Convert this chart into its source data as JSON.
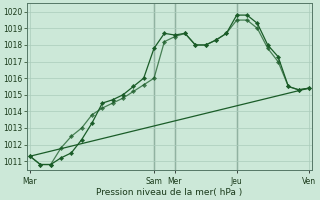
{
  "xlabel": "Pression niveau de la mer( hPa )",
  "ylim": [
    1010.5,
    1020.5
  ],
  "yticks": [
    1011,
    1012,
    1013,
    1014,
    1015,
    1016,
    1017,
    1018,
    1019,
    1020
  ],
  "day_labels": [
    "Mar",
    "",
    "Sam",
    "Mer",
    "",
    "Jeu",
    "",
    "Ven"
  ],
  "day_tick_labels": [
    "Mar",
    "Sam",
    "Mer",
    "Jeu",
    "Ven"
  ],
  "day_tick_pos": [
    0,
    12,
    14,
    20,
    27
  ],
  "bg_color": "#cce8d8",
  "grid_color": "#aaccbb",
  "line_color": "#1a5c28",
  "xlim": [
    -0.3,
    27.3
  ],
  "series1_x": [
    0,
    1,
    2,
    3,
    4,
    5,
    6,
    7,
    8,
    9,
    10,
    11,
    12,
    13,
    14,
    15,
    16,
    17,
    18,
    19,
    20,
    21,
    22,
    23,
    24,
    25,
    26,
    27
  ],
  "series1_y": [
    1011.3,
    1010.8,
    1010.8,
    1011.2,
    1011.5,
    1012.3,
    1013.3,
    1014.5,
    1014.7,
    1015.0,
    1015.5,
    1016.0,
    1017.8,
    1018.7,
    1018.6,
    1018.7,
    1018.0,
    1018.0,
    1018.3,
    1018.7,
    1019.8,
    1019.8,
    1019.3,
    1018.0,
    1017.3,
    1015.5,
    1015.3,
    1015.4
  ],
  "series2_x": [
    0,
    1,
    2,
    3,
    4,
    5,
    6,
    7,
    8,
    9,
    10,
    11,
    12,
    13,
    14,
    15,
    16,
    17,
    18,
    19,
    20,
    21,
    22,
    23,
    24,
    25,
    26,
    27
  ],
  "series2_y": [
    1011.3,
    1010.8,
    1010.8,
    1011.8,
    1012.5,
    1013.0,
    1013.8,
    1014.2,
    1014.5,
    1014.8,
    1015.2,
    1015.6,
    1016.0,
    1018.2,
    1018.5,
    1018.7,
    1018.0,
    1018.0,
    1018.3,
    1018.7,
    1019.5,
    1019.5,
    1019.0,
    1017.8,
    1017.0,
    1015.5,
    1015.3,
    1015.4
  ],
  "series3_x": [
    0,
    27
  ],
  "series3_y": [
    1011.3,
    1015.4
  ],
  "vline_positions": [
    12,
    14,
    20
  ],
  "marker_every1": [
    0,
    2,
    4,
    6,
    8,
    10,
    12,
    13,
    14,
    15,
    16,
    17,
    18,
    19,
    20,
    21,
    22,
    23,
    24,
    25,
    26,
    27
  ],
  "marker_every2": [
    0,
    2,
    4,
    6,
    8,
    10,
    12,
    13,
    14,
    15,
    16,
    17,
    18,
    19,
    20,
    21,
    22,
    23,
    24,
    25,
    26,
    27
  ]
}
